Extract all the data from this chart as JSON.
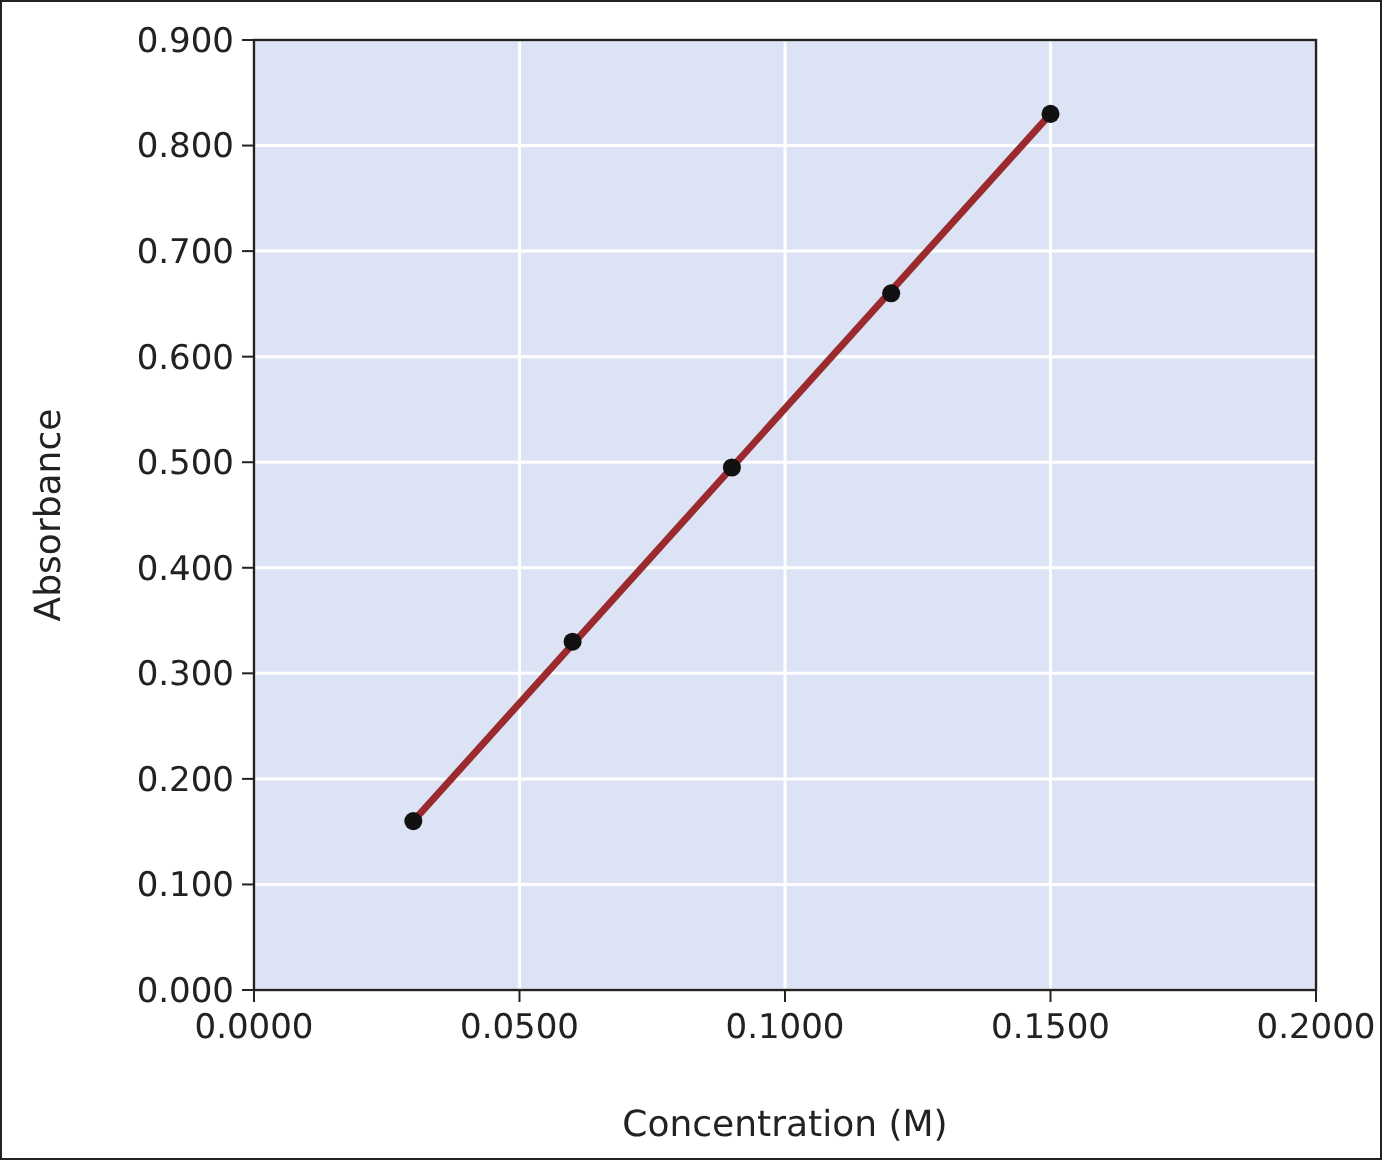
{
  "chart_data": {
    "type": "scatter",
    "xlabel": "Concentration (M)",
    "ylabel": "Absorbance",
    "xlim": [
      0,
      0.2
    ],
    "ylim": [
      0,
      0.9
    ],
    "xticks": [
      {
        "value": 0,
        "label": "0.0000"
      },
      {
        "value": 0.05,
        "label": "0.0500"
      },
      {
        "value": 0.1,
        "label": "0.1000"
      },
      {
        "value": 0.15,
        "label": "0.1500"
      },
      {
        "value": 0.2,
        "label": "0.2000"
      }
    ],
    "yticks": [
      {
        "value": 0,
        "label": "0.000"
      },
      {
        "value": 0.1,
        "label": "0.100"
      },
      {
        "value": 0.2,
        "label": "0.200"
      },
      {
        "value": 0.3,
        "label": "0.300"
      },
      {
        "value": 0.4,
        "label": "0.400"
      },
      {
        "value": 0.5,
        "label": "0.500"
      },
      {
        "value": 0.6,
        "label": "0.600"
      },
      {
        "value": 0.7,
        "label": "0.700"
      },
      {
        "value": 0.8,
        "label": "0.800"
      },
      {
        "value": 0.9,
        "label": "0.900"
      }
    ],
    "grid": true,
    "series": [
      {
        "type": "line",
        "color": "#9b2a2e",
        "x": [
          0.03,
          0.15
        ],
        "values": [
          0.16,
          0.83
        ]
      },
      {
        "marker": "circle",
        "color": "#111111",
        "x": [
          0.03,
          0.06,
          0.09,
          0.12,
          0.15
        ],
        "values": [
          0.16,
          0.33,
          0.495,
          0.66,
          0.83
        ]
      }
    ]
  }
}
